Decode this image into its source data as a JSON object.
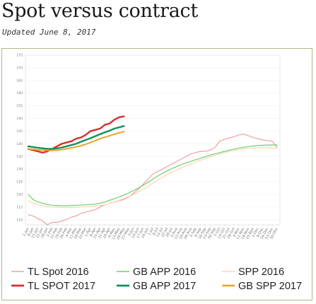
{
  "page": {
    "title": "Spot versus contract",
    "subtitle": "Updated June 8, 2017"
  },
  "chart_data": {
    "type": "line",
    "title": "",
    "xlabel": "",
    "ylabel": "",
    "ylim": [
      108,
      175
    ],
    "y_ticks": [
      110,
      115,
      120,
      125,
      130,
      135,
      140,
      145,
      150,
      155,
      160,
      165,
      170,
      175
    ],
    "y_tick_labels": [
      "110",
      "115",
      "120",
      "125",
      "130",
      "135",
      "140",
      "145",
      "150",
      "155",
      "160",
      "165",
      "170",
      "175"
    ],
    "grid": true,
    "legend_position": "bottom",
    "categories": [
      "1-Jan",
      "8-Jan",
      "15-Jan",
      "22-Jan",
      "29-Jan",
      "5-Feb",
      "12-Feb",
      "19-Feb",
      "26-Feb",
      "4-Mar",
      "11-Mar",
      "18-Mar",
      "25-Mar",
      "1-Apr",
      "8-Apr",
      "15-Apr",
      "22-Apr",
      "29-Apr",
      "6-May",
      "13-May",
      "20-May",
      "27-May",
      "3-Jun",
      "10-Jun",
      "17-Jun",
      "24-Jun",
      "1-Jul",
      "8-Jul",
      "15-Jul",
      "22-Jul",
      "29-Jul",
      "5-Aug",
      "12-Aug",
      "19-Aug",
      "26-Aug",
      "2-Sep",
      "9-Sep",
      "16-Sep",
      "23-Sep",
      "30-Sep",
      "7-Oct",
      "14-Oct",
      "21-Oct",
      "28-Oct",
      "4-Nov",
      "11-Nov",
      "18-Nov",
      "25-Nov",
      "2-Dec",
      "9-Dec",
      "16-Dec",
      "23-Dec",
      "30-Dec"
    ],
    "series": [
      {
        "name": "TL Spot 2016",
        "color": "#f0a0a0",
        "width": 1.2,
        "values": [
          112.0,
          111.5,
          110.5,
          109.5,
          108.0,
          109.0,
          109.0,
          109.5,
          110.2,
          111.0,
          111.5,
          112.5,
          113.0,
          113.5,
          114.0,
          115.0,
          116.0,
          116.5,
          117.0,
          117.5,
          118.0,
          119.0,
          120.5,
          122.0,
          124.0,
          126.0,
          128.0,
          129.0,
          130.0,
          131.0,
          132.0,
          133.0,
          134.0,
          135.0,
          136.0,
          136.5,
          137.0,
          137.0,
          137.5,
          138.5,
          141.0,
          141.8,
          142.3,
          142.8,
          143.5,
          143.8,
          143.2,
          142.5,
          142.0,
          141.5,
          141.3,
          141.0,
          138.5
        ]
      },
      {
        "name": "TL SPOT 2017",
        "color": "#d62e2e",
        "width": 2.4,
        "values": [
          138.0,
          137.5,
          137.0,
          136.5,
          137.0,
          138.0,
          139.0,
          140.0,
          140.5,
          141.0,
          142.0,
          142.5,
          143.5,
          145.0,
          145.5,
          146.0,
          147.5,
          148.0,
          149.5,
          150.5,
          150.8,
          null,
          null,
          null,
          null,
          null,
          null,
          null,
          null,
          null,
          null,
          null,
          null,
          null,
          null,
          null,
          null,
          null,
          null,
          null,
          null,
          null,
          null,
          null,
          null,
          null,
          null,
          null,
          null,
          null,
          null,
          null,
          null
        ]
      },
      {
        "name": "GB APP 2016",
        "color": "#6fce6f",
        "width": 1.2,
        "values": [
          120.0,
          118.0,
          117.0,
          116.5,
          116.0,
          115.7,
          115.6,
          115.5,
          115.5,
          115.6,
          115.7,
          115.8,
          115.9,
          116.0,
          116.2,
          116.5,
          117.0,
          117.7,
          118.3,
          119.0,
          119.8,
          120.6,
          121.5,
          122.5,
          123.6,
          124.8,
          126.0,
          127.2,
          128.3,
          129.3,
          130.2,
          131.0,
          131.8,
          132.5,
          133.1,
          133.7,
          134.3,
          134.9,
          135.5,
          136.0,
          136.5,
          137.0,
          137.5,
          137.9,
          138.3,
          138.6,
          138.9,
          139.1,
          139.3,
          139.4,
          139.5,
          139.5,
          139.5
        ]
      },
      {
        "name": "GB APP 2017",
        "color": "#13905a",
        "width": 2.4,
        "values": [
          139.0,
          138.7,
          138.4,
          138.2,
          138.0,
          138.0,
          138.2,
          138.5,
          139.0,
          139.5,
          140.0,
          140.8,
          141.5,
          142.2,
          143.0,
          143.8,
          144.5,
          145.2,
          146.0,
          146.5,
          147.0,
          null,
          null,
          null,
          null,
          null,
          null,
          null,
          null,
          null,
          null,
          null,
          null,
          null,
          null,
          null,
          null,
          null,
          null,
          null,
          null,
          null,
          null,
          null,
          null,
          null,
          null,
          null,
          null,
          null,
          null,
          null,
          null
        ]
      },
      {
        "name": "SPP 2016",
        "color": "#f9d8b0",
        "width": 1.2,
        "values": [
          117.5,
          116.5,
          116.0,
          115.5,
          115.2,
          115.0,
          114.9,
          114.8,
          114.8,
          114.8,
          114.9,
          115.0,
          115.1,
          115.2,
          115.4,
          115.6,
          116.0,
          116.5,
          117.0,
          117.7,
          118.4,
          119.2,
          120.0,
          121.0,
          122.0,
          123.2,
          124.4,
          125.6,
          126.7,
          127.8,
          128.8,
          129.7,
          130.5,
          131.3,
          132.1,
          132.8,
          133.5,
          134.2,
          134.8,
          135.4,
          136.0,
          136.5,
          137.0,
          137.4,
          137.7,
          138.0,
          138.2,
          138.3,
          138.4,
          138.4,
          138.4,
          138.3,
          138.3
        ]
      },
      {
        "name": "GB SPP 2017",
        "color": "#eea22a",
        "width": 2.0,
        "values": [
          138.0,
          137.8,
          137.6,
          137.5,
          137.4,
          137.4,
          137.5,
          137.7,
          138.0,
          138.4,
          138.8,
          139.2,
          139.8,
          140.5,
          141.2,
          142.0,
          142.6,
          143.2,
          143.8,
          144.3,
          144.8,
          null,
          null,
          null,
          null,
          null,
          null,
          null,
          null,
          null,
          null,
          null,
          null,
          null,
          null,
          null,
          null,
          null,
          null,
          null,
          null,
          null,
          null,
          null,
          null,
          null,
          null,
          null,
          null,
          null,
          null,
          null,
          null
        ]
      }
    ]
  }
}
